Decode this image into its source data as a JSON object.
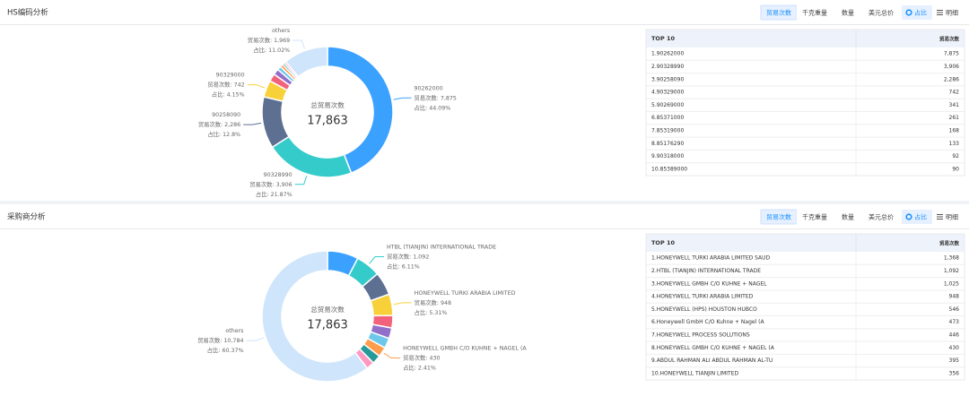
{
  "panels": [
    {
      "title": "HS编码分析",
      "tabs": [
        "贸易次数",
        "千克重量",
        "数量",
        "美元总价"
      ],
      "toggle": [
        "占比",
        "明细"
      ],
      "table": {
        "header": [
          "TOP 10",
          "贸易次数"
        ],
        "rows": [
          [
            "1.90262000",
            "7,875"
          ],
          [
            "2.90328990",
            "3,906"
          ],
          [
            "3.90258090",
            "2,286"
          ],
          [
            "4.90329000",
            "742"
          ],
          [
            "5.90269000",
            "341"
          ],
          [
            "6.85371000",
            "261"
          ],
          [
            "7.85319000",
            "168"
          ],
          [
            "8.85176290",
            "133"
          ],
          [
            "9.90318000",
            "92"
          ],
          [
            "10.85389000",
            "90"
          ]
        ]
      }
    },
    {
      "title": "采购商分析",
      "tabs": [
        "贸易次数",
        "千克重量",
        "数量",
        "美元总价"
      ],
      "toggle": [
        "占比",
        "明细"
      ],
      "table": {
        "header": [
          "TOP 10",
          "贸易次数"
        ],
        "rows": [
          [
            "1.HONEYWELL TURKI ARABIA LIMITED SAUD",
            "1,368"
          ],
          [
            "2.HTBL (TIANJIN) INTERNATIONAL TRADE",
            "1,092"
          ],
          [
            "3.HONEYWELL GMBH C/O KUHNE + NAGEL",
            "1,025"
          ],
          [
            "4.HONEYWELL TURKI ARABIA LIMITED",
            "948"
          ],
          [
            "5.HONEYWELL (HPS) HOUSTON HUBCO",
            "546"
          ],
          [
            "6.Honeywell GmbH C/O Kuhne + Nagel (A",
            "473"
          ],
          [
            "7.HONEYWELL PROCESS SOLUTIONS",
            "446"
          ],
          [
            "8.HONEYWELL GMBH C/O KUHNE + NAGEL (A",
            "430"
          ],
          [
            "9.ABDUL RAHMAN ALI ABDUL RAHMAN AL-TU",
            "395"
          ],
          [
            "10.HONEYWELL TIANJIN LIMITED",
            "356"
          ]
        ]
      }
    }
  ],
  "chart_data": [
    {
      "type": "donut",
      "center_caption": "总贸易次数",
      "center_value": "17,863",
      "value_caption": "贸易次数:",
      "share_caption": "占比:",
      "categories": [
        "90262000",
        "90328990",
        "90258090",
        "90329000",
        null,
        null,
        null,
        null,
        null,
        null,
        "others"
      ],
      "values": [
        7875,
        3906,
        2286,
        742,
        341,
        261,
        168,
        133,
        92,
        90,
        1969
      ],
      "value_labels": [
        "7,875",
        "3,906",
        "2,286",
        "742",
        null,
        null,
        null,
        null,
        null,
        null,
        "1,969"
      ],
      "share_labels": [
        "44.09%",
        "21.87%",
        "12.8%",
        "4.15%",
        null,
        null,
        null,
        null,
        null,
        null,
        "11.02%"
      ],
      "colors": [
        "#3ba1ff",
        "#36cbcb",
        "#5d7092",
        "#f8d13a",
        "#f2637b",
        "#9270ca",
        "#6dc8ec",
        "#ff9d4d",
        "#269a99",
        "#ff99c3",
        "#cfe5fb"
      ]
    },
    {
      "type": "donut",
      "center_caption": "总贸易次数",
      "center_value": "17,863",
      "value_caption": "贸易次数:",
      "share_caption": "占比:",
      "categories": [
        null,
        "HTBL (TIANJIN) INTERNATIONAL TRADE",
        null,
        "HONEYWELL TURKI ARABIA LIMITED",
        null,
        null,
        null,
        "HONEYWELL GMBH C/O KUHNE + NAGEL (A",
        null,
        null,
        "others"
      ],
      "values": [
        1368,
        1092,
        1025,
        948,
        546,
        473,
        446,
        430,
        395,
        356,
        10784
      ],
      "value_labels": [
        null,
        "1,092",
        null,
        "948",
        null,
        null,
        null,
        "430",
        null,
        null,
        "10,784"
      ],
      "share_labels": [
        null,
        "6.11%",
        null,
        "5.31%",
        null,
        null,
        null,
        "2.41%",
        null,
        null,
        "60.37%"
      ],
      "colors": [
        "#3ba1ff",
        "#36cbcb",
        "#5d7092",
        "#f8d13a",
        "#f2637b",
        "#9270ca",
        "#6dc8ec",
        "#ff9d4d",
        "#269a99",
        "#ff99c3",
        "#cfe5fb"
      ]
    }
  ]
}
